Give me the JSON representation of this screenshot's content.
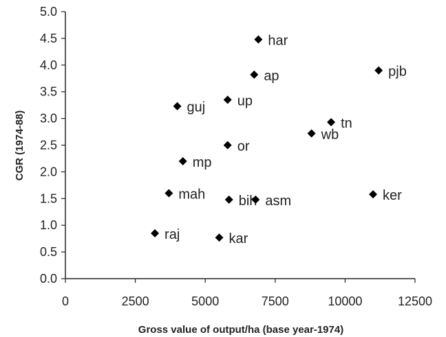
{
  "chart_data": {
    "type": "scatter",
    "title": "",
    "xlabel": "Gross value of output/ha (base year-1974)",
    "ylabel": "CGR (1974-88)",
    "xlim": [
      0,
      12500
    ],
    "ylim": [
      0,
      5.0
    ],
    "xticks": [
      "0",
      "2500",
      "5000",
      "7500",
      "10000",
      "12500"
    ],
    "yticks": [
      "0.0",
      "0.5",
      "1.0",
      "1.5",
      "2.0",
      "2.5",
      "3.0",
      "3.5",
      "4.0",
      "4.5",
      "5.0"
    ],
    "marker": "diamond",
    "marker_color": "#000000",
    "grid": false,
    "legend": "none",
    "points": [
      {
        "label": "har",
        "x": 6900,
        "y": 4.48
      },
      {
        "label": "ap",
        "x": 6750,
        "y": 3.82
      },
      {
        "label": "pjb",
        "x": 11200,
        "y": 3.9
      },
      {
        "label": "up",
        "x": 5800,
        "y": 3.35
      },
      {
        "label": "guj",
        "x": 4000,
        "y": 3.23
      },
      {
        "label": "tn",
        "x": 9500,
        "y": 2.93
      },
      {
        "label": "wb",
        "x": 8800,
        "y": 2.72
      },
      {
        "label": "or",
        "x": 5800,
        "y": 2.5
      },
      {
        "label": "mp",
        "x": 4200,
        "y": 2.2
      },
      {
        "label": "mah",
        "x": 3700,
        "y": 1.6
      },
      {
        "label": "bih",
        "x": 5850,
        "y": 1.48
      },
      {
        "label": "asm",
        "x": 6800,
        "y": 1.48
      },
      {
        "label": "ker",
        "x": 11000,
        "y": 1.58
      },
      {
        "label": "raj",
        "x": 3200,
        "y": 0.85
      },
      {
        "label": "kar",
        "x": 5500,
        "y": 0.77
      }
    ]
  }
}
